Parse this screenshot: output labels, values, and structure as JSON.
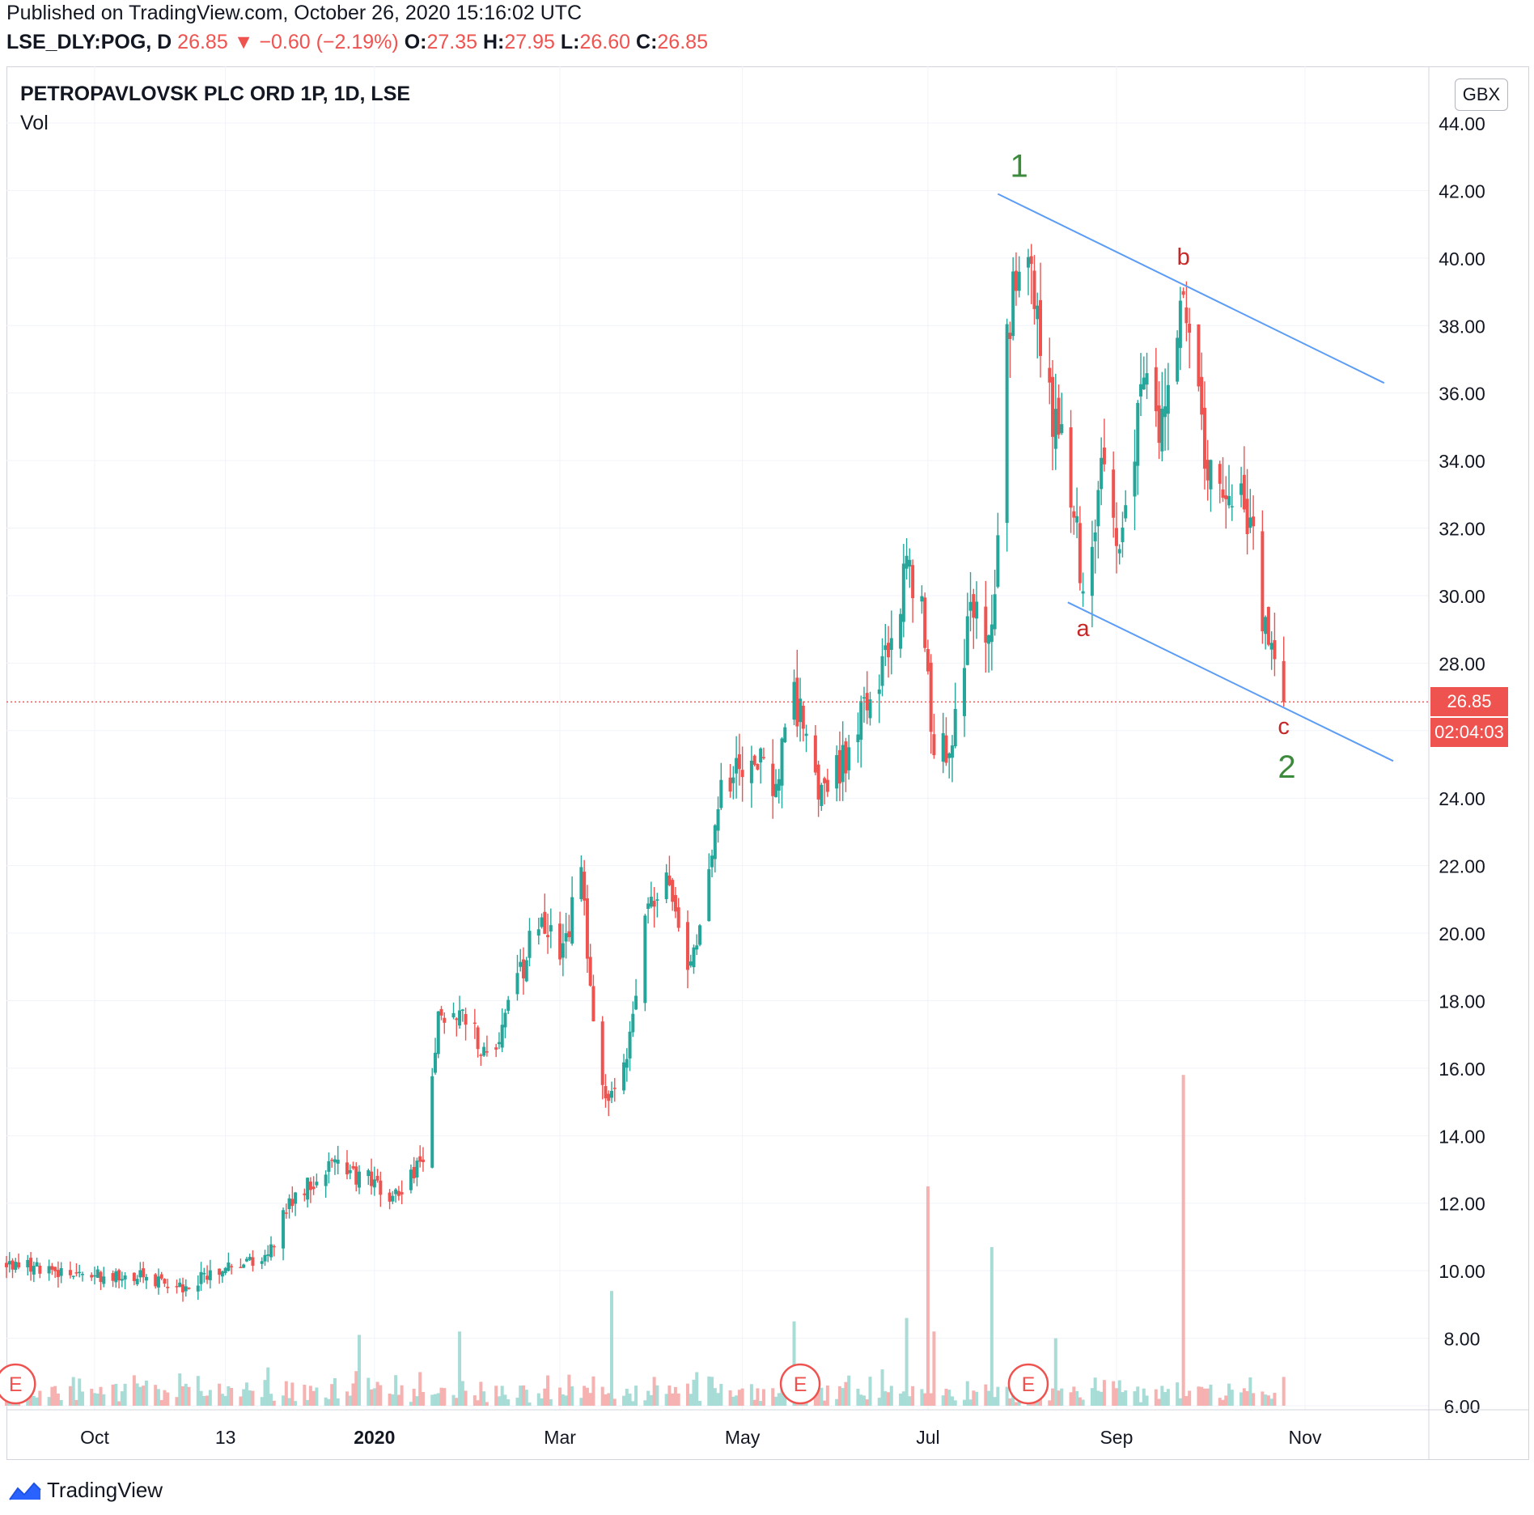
{
  "header": {
    "published": "Published on TradingView.com, October 26, 2020 15:16:02 UTC",
    "symbol": "LSE_DLY:POG, D",
    "last": "26.85",
    "arrow": "▼",
    "change": "−0.60 (−2.19%)",
    "o_label": "O:",
    "o_value": "27.35",
    "h_label": "H:",
    "h_value": "27.95",
    "l_label": "L:",
    "l_value": "26.60",
    "c_label": "C:",
    "c_value": "26.85"
  },
  "chart_title": "PETROPAVLOVSK PLC ORD 1P, 1D, LSE",
  "volume_label": "Vol",
  "currency_button": "GBX",
  "current_price_tag": "26.85",
  "countdown_tag": "02:04:03",
  "earnings_marker": "E",
  "footer_brand": "TradingView",
  "colors": {
    "up": "#26a69a",
    "down": "#ef5350",
    "trendline": "#5b9cf6",
    "wave_major": "#3c8a3c",
    "wave_minor": "#c62828"
  },
  "chart_data": {
    "type": "candlestick",
    "price_axis": {
      "min": 6,
      "max": 44,
      "ticks": [
        "44.00",
        "42.00",
        "40.00",
        "38.00",
        "36.00",
        "34.00",
        "32.00",
        "30.00",
        "28.00",
        "26.00",
        "24.00",
        "22.00",
        "20.00",
        "18.00",
        "16.00",
        "14.00",
        "12.00",
        "10.00",
        "8.00",
        "6.00"
      ]
    },
    "time_axis": {
      "start": "2019-09-02",
      "end": "2020-12-01",
      "ticks": [
        {
          "label": "Oct",
          "date": "2019-10-01"
        },
        {
          "label": "13",
          "date": "2019-11-13"
        },
        {
          "label": "2020",
          "date": "2020-01-01",
          "bold": true
        },
        {
          "label": "Mar",
          "date": "2020-03-02"
        },
        {
          "label": "May",
          "date": "2020-05-01"
        },
        {
          "label": "Jul",
          "date": "2020-07-01"
        },
        {
          "label": "Sep",
          "date": "2020-09-01"
        },
        {
          "label": "Nov",
          "date": "2020-11-02"
        }
      ]
    },
    "price_path": [
      [
        "2019-09-02",
        10.2
      ],
      [
        "2019-09-20",
        9.9
      ],
      [
        "2019-10-15",
        9.8
      ],
      [
        "2019-10-30",
        9.5
      ],
      [
        "2019-11-15",
        10.3
      ],
      [
        "2019-11-25",
        10.1
      ],
      [
        "2019-12-05",
        12.2
      ],
      [
        "2019-12-18",
        13.1
      ],
      [
        "2019-12-28",
        12.8
      ],
      [
        "2020-01-08",
        12.2
      ],
      [
        "2020-01-17",
        13.2
      ],
      [
        "2020-01-22",
        17.5
      ],
      [
        "2020-02-01",
        17.7
      ],
      [
        "2020-02-08",
        16.0
      ],
      [
        "2020-02-15",
        18.0
      ],
      [
        "2020-02-24",
        20.5
      ],
      [
        "2020-03-03",
        19.5
      ],
      [
        "2020-03-09",
        22.0
      ],
      [
        "2020-03-12",
        18.5
      ],
      [
        "2020-03-17",
        15.0
      ],
      [
        "2020-03-24",
        16.0
      ],
      [
        "2020-03-30",
        20.5
      ],
      [
        "2020-04-06",
        21.5
      ],
      [
        "2020-04-14",
        19.0
      ],
      [
        "2020-04-24",
        24.5
      ],
      [
        "2020-05-04",
        25.5
      ],
      [
        "2020-05-12",
        24.5
      ],
      [
        "2020-05-18",
        27.0
      ],
      [
        "2020-05-27",
        24.0
      ],
      [
        "2020-06-05",
        25.5
      ],
      [
        "2020-06-12",
        27.0
      ],
      [
        "2020-06-18",
        28.5
      ],
      [
        "2020-06-24",
        31.0
      ],
      [
        "2020-06-30",
        29.0
      ],
      [
        "2020-07-02",
        25.5
      ],
      [
        "2020-07-09",
        25.5
      ],
      [
        "2020-07-15",
        29.5
      ],
      [
        "2020-07-22",
        29.0
      ],
      [
        "2020-07-27",
        37.5
      ],
      [
        "2020-07-30",
        40.0
      ],
      [
        "2020-08-04",
        39.0
      ],
      [
        "2020-08-11",
        35.5
      ],
      [
        "2020-08-18",
        33.0
      ],
      [
        "2020-08-21",
        30.0
      ],
      [
        "2020-08-27",
        33.5
      ],
      [
        "2020-09-03",
        31.5
      ],
      [
        "2020-09-10",
        36.5
      ],
      [
        "2020-09-16",
        35.0
      ],
      [
        "2020-09-21",
        38.5
      ],
      [
        "2020-09-25",
        37.5
      ],
      [
        "2020-09-30",
        34.0
      ],
      [
        "2020-10-07",
        33.5
      ],
      [
        "2020-10-14",
        32.5
      ],
      [
        "2020-10-19",
        29.5
      ],
      [
        "2020-10-22",
        28.0
      ],
      [
        "2020-10-26",
        26.85
      ]
    ],
    "earnings_dates": [
      "2019-09-05",
      "2020-05-20",
      "2020-08-03"
    ],
    "trendlines": [
      {
        "name": "upper",
        "from": [
          "2020-07-24",
          41.9
        ],
        "to": [
          "2020-11-28",
          36.3
        ]
      },
      {
        "name": "lower",
        "from": [
          "2020-08-16",
          29.8
        ],
        "to": [
          "2020-12-01",
          25.1
        ]
      }
    ],
    "wave_labels": [
      {
        "text": "1",
        "date": "2020-07-31",
        "price": 42.4,
        "major": true
      },
      {
        "text": "b",
        "date": "2020-09-23",
        "price": 39.8,
        "major": false
      },
      {
        "text": "a",
        "date": "2020-08-21",
        "price": 28.8,
        "major": false
      },
      {
        "text": "c",
        "date": "2020-10-26",
        "price": 25.9,
        "major": false
      },
      {
        "text": "2",
        "date": "2020-10-27",
        "price": 24.6,
        "major": true
      }
    ],
    "current_price": 26.85,
    "volume_spikes": [
      [
        "2019-12-27",
        8.1
      ],
      [
        "2020-01-29",
        8.2
      ],
      [
        "2020-03-19",
        9.4
      ],
      [
        "2020-05-18",
        8.5
      ],
      [
        "2020-06-24",
        8.6
      ],
      [
        "2020-07-01",
        12.5
      ],
      [
        "2020-07-03",
        8.2
      ],
      [
        "2020-07-22",
        10.7
      ],
      [
        "2020-08-12",
        8.0
      ],
      [
        "2020-09-23",
        15.8
      ]
    ]
  }
}
